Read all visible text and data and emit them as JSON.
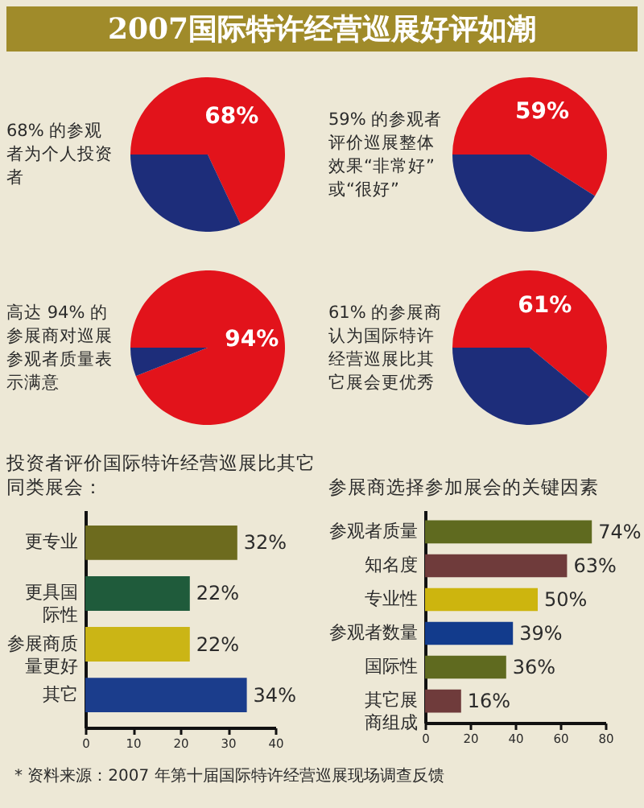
{
  "chart_data": [
    {
      "type": "other",
      "title": "2007国际特许经营巡展好评如潮"
    },
    {
      "type": "pie",
      "title": "68% 的参观者为个人投资者",
      "categories": [
        null,
        null
      ],
      "values": [
        68,
        32
      ],
      "colors": [
        "#e2131b",
        "#1d2d7a"
      ],
      "value_labels": [
        "68%",
        null
      ]
    },
    {
      "type": "pie",
      "title": "59% 的参观者评价巡展整体效果“非常好”或“很好”",
      "categories": [
        null,
        null
      ],
      "values": [
        59,
        41
      ],
      "colors": [
        "#e2131b",
        "#1d2d7a"
      ],
      "value_labels": [
        "59%",
        null
      ]
    },
    {
      "type": "pie",
      "title": "高达 94% 的参展商对巡展参观者质量表示满意",
      "categories": [
        null,
        null
      ],
      "values": [
        94,
        6
      ],
      "colors": [
        "#e2131b",
        "#1d2d7a"
      ],
      "value_labels": [
        "94%",
        null
      ]
    },
    {
      "type": "pie",
      "title": "61% 的参展商认为国际特许经营巡展比其它展会更优秀",
      "categories": [
        null,
        null
      ],
      "values": [
        61,
        39
      ],
      "colors": [
        "#e2131b",
        "#1d2d7a"
      ],
      "value_labels": [
        "61%",
        null
      ]
    },
    {
      "type": "bar",
      "orientation": "horizontal",
      "title": "投资者评价国际特许经营巡展比其它同类展会：",
      "categories": [
        "更专业",
        "更具国际性",
        "参展商质量更好",
        "其它"
      ],
      "values": [
        32,
        22,
        22,
        34
      ],
      "colors": [
        "#6d6b1e",
        "#1f5b3b",
        "#cbb515",
        "#1b3d8c"
      ],
      "value_labels": [
        "32%",
        "22%",
        "22%",
        "34%"
      ],
      "xlim": [
        0,
        40
      ],
      "xticks": [
        0,
        10,
        20,
        30,
        40
      ],
      "annotations": [
        "* 资料来源：2007 年第十届国际特许经营巡展现场调查反馈"
      ]
    },
    {
      "type": "bar",
      "orientation": "horizontal",
      "title": "参展商选择参加展会的关键因素",
      "categories": [
        "参观者质量",
        "知名度",
        "专业性",
        "参观者数量",
        "国际性",
        "其它展商组成"
      ],
      "values": [
        74,
        63,
        50,
        39,
        36,
        16
      ],
      "colors": [
        "#5f6a1f",
        "#6f3b3b",
        "#cdb50e",
        "#123b8c",
        "#5f6a1f",
        "#6f3b3b"
      ],
      "value_labels": [
        "74%",
        "63%",
        "50%",
        "39%",
        "36%",
        "16%"
      ],
      "xlim": [
        0,
        80
      ],
      "xticks": [
        0,
        20,
        40,
        60,
        80
      ]
    }
  ]
}
